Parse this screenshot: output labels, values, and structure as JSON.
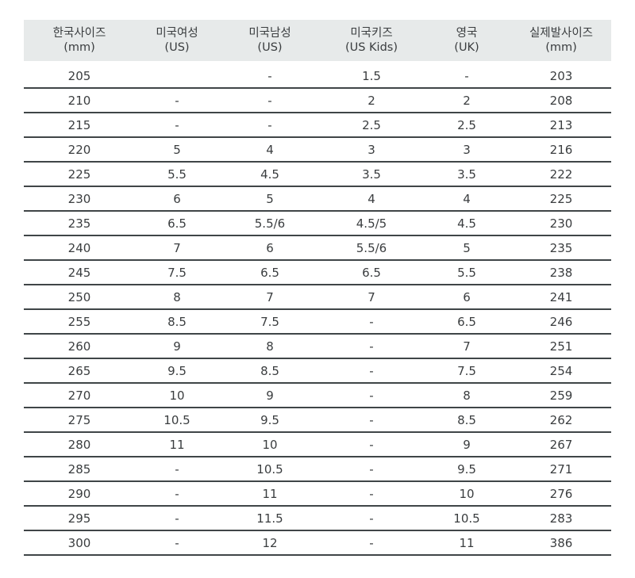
{
  "table": {
    "headers": [
      {
        "line1": "한국사이즈",
        "line2": "(mm)"
      },
      {
        "line1": "미국여성",
        "line2": "(US)"
      },
      {
        "line1": "미국남성",
        "line2": "(US)"
      },
      {
        "line1": "미국키즈",
        "line2": "(US Kids)"
      },
      {
        "line1": "영국",
        "line2": "(UK)"
      },
      {
        "line1": "실제발사이즈",
        "line2": "(mm)"
      }
    ],
    "rows": [
      [
        "205",
        "",
        "-",
        "1.5",
        "-",
        "203"
      ],
      [
        "210",
        "-",
        "-",
        "2",
        "2",
        "208"
      ],
      [
        "215",
        "-",
        "-",
        "2.5",
        "2.5",
        "213"
      ],
      [
        "220",
        "5",
        "4",
        "3",
        "3",
        "216"
      ],
      [
        "225",
        "5.5",
        "4.5",
        "3.5",
        "3.5",
        "222"
      ],
      [
        "230",
        "6",
        "5",
        "4",
        "4",
        "225"
      ],
      [
        "235",
        "6.5",
        "5.5/6",
        "4.5/5",
        "4.5",
        "230"
      ],
      [
        "240",
        "7",
        "6",
        "5.5/6",
        "5",
        "235"
      ],
      [
        "245",
        "7.5",
        "6.5",
        "6.5",
        "5.5",
        "238"
      ],
      [
        "250",
        "8",
        "7",
        "7",
        "6",
        "241"
      ],
      [
        "255",
        "8.5",
        "7.5",
        "-",
        "6.5",
        "246"
      ],
      [
        "260",
        "9",
        "8",
        "-",
        "7",
        "251"
      ],
      [
        "265",
        "9.5",
        "8.5",
        "-",
        "7.5",
        "254"
      ],
      [
        "270",
        "10",
        "9",
        "-",
        "8",
        "259"
      ],
      [
        "275",
        "10.5",
        "9.5",
        "-",
        "8.5",
        "262"
      ],
      [
        "280",
        "11",
        "10",
        "-",
        "9",
        "267"
      ],
      [
        "285",
        "-",
        "10.5",
        "-",
        "9.5",
        "271"
      ],
      [
        "290",
        "-",
        "11",
        "-",
        "10",
        "276"
      ],
      [
        "295",
        "-",
        "11.5",
        "-",
        "10.5",
        "283"
      ],
      [
        "300",
        "-",
        "12",
        "-",
        "11",
        "386"
      ]
    ]
  }
}
